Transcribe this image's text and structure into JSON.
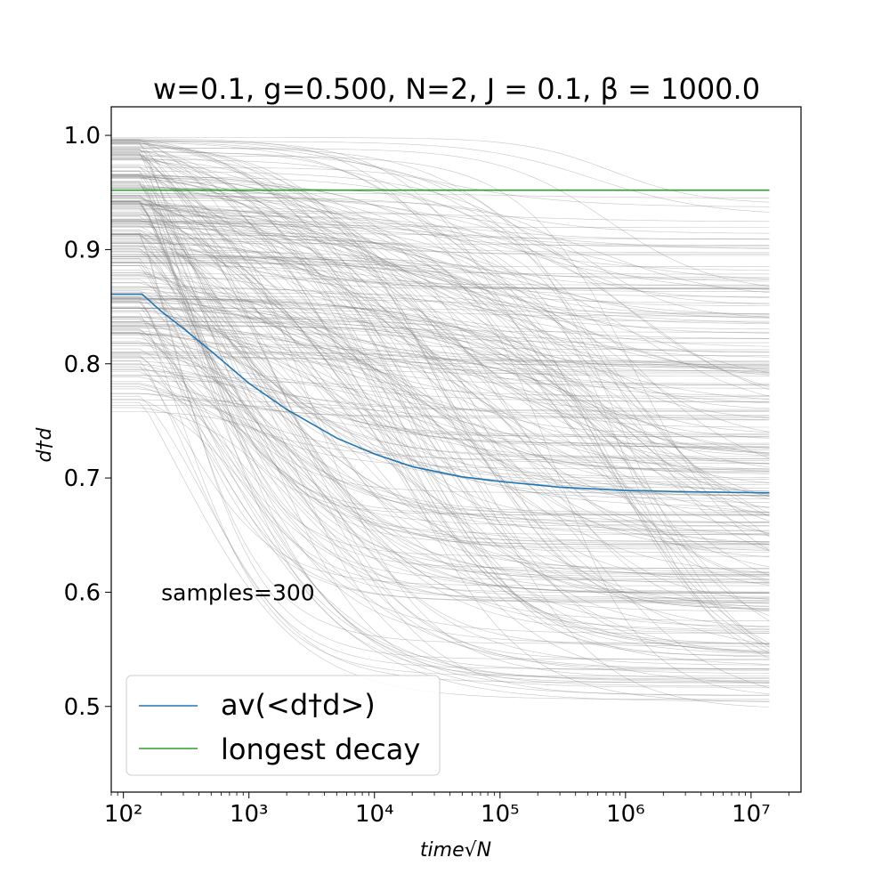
{
  "chart_data": {
    "type": "line",
    "title": "w=0.1, g=0.500, N=2, J = 0.1, β = 1000.0",
    "xlabel": "time√N",
    "ylabel": "d†d",
    "x_scale": "log",
    "xlim": [
      80,
      25000000
    ],
    "ylim": [
      0.425,
      1.025
    ],
    "x_ticks": [
      {
        "value": 100,
        "label": "10²"
      },
      {
        "value": 1000,
        "label": "10³"
      },
      {
        "value": 10000,
        "label": "10⁴"
      },
      {
        "value": 100000,
        "label": "10⁵"
      },
      {
        "value": 1000000,
        "label": "10⁶"
      },
      {
        "value": 10000000,
        "label": "10⁷"
      }
    ],
    "y_ticks": [
      {
        "value": 0.5,
        "label": "0.5"
      },
      {
        "value": 0.6,
        "label": "0.6"
      },
      {
        "value": 0.7,
        "label": "0.7"
      },
      {
        "value": 0.8,
        "label": "0.8"
      },
      {
        "value": 0.9,
        "label": "0.9"
      },
      {
        "value": 1.0,
        "label": "1.0"
      }
    ],
    "series": [
      {
        "name": "av(<d†d>)",
        "color": "#1f77b4",
        "x": [
          80,
          141,
          200,
          300,
          500,
          1000,
          2000,
          5000,
          10000,
          20000,
          50000,
          100000,
          300000,
          1000000,
          3000000,
          14000000
        ],
        "y": [
          0.861,
          0.861,
          0.846,
          0.831,
          0.811,
          0.783,
          0.76,
          0.735,
          0.721,
          0.71,
          0.701,
          0.697,
          0.692,
          0.689,
          0.688,
          0.687
        ]
      },
      {
        "name": "longest decay",
        "color": "#2ca02c",
        "x": [
          80,
          14000000
        ],
        "y": [
          0.952,
          0.952
        ]
      }
    ],
    "sample_curves": {
      "count": 300,
      "color": "#808080",
      "x_start": 80,
      "x_end": 14000000,
      "x_step_start": 141,
      "initial_range": [
        0.755,
        1.0
      ],
      "final_range": [
        0.45,
        0.955
      ]
    },
    "annotations": [
      {
        "text": "samples=300",
        "x": 200,
        "y": 0.6
      }
    ],
    "legend": {
      "location": "lower-left",
      "entries": [
        "av(<d†d>)",
        "longest decay"
      ]
    },
    "grid": false
  }
}
